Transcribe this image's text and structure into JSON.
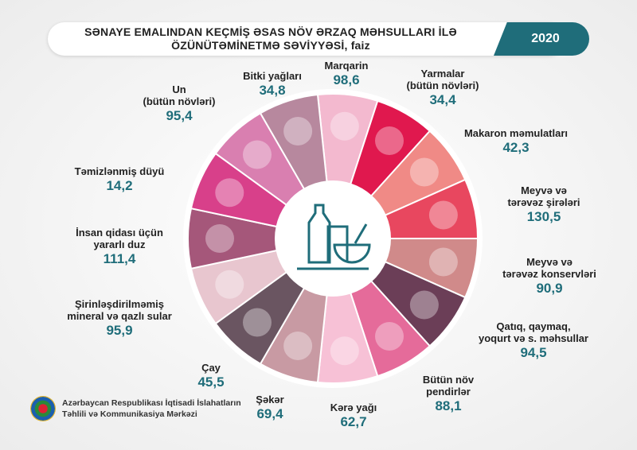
{
  "header": {
    "title_line1": "SƏNAYE EMALINDAN KEÇMİŞ ƏSAS NÖV ƏRZAQ MƏHSULLARI İLƏ",
    "title_line2": "ÖZÜNÜTƏMİNETMƏ SƏVİYYƏSİ, faiz",
    "year": "2020"
  },
  "items": [
    {
      "label": "Marqarin",
      "value": "98,6",
      "color": "#f3b9cf"
    },
    {
      "label": "Yarmalar\n(bütün növləri)",
      "value": "34,4",
      "color": "#e0184e"
    },
    {
      "label": "Makaron məmulatları",
      "value": "42,3",
      "color": "#f08a86"
    },
    {
      "label": "Meyvə və\ntərəvəz şirələri",
      "value": "130,5",
      "color": "#e8475f"
    },
    {
      "label": "Meyvə və\ntərəvəz konservləri",
      "value": "90,9",
      "color": "#d08a8a"
    },
    {
      "label": "Qatıq, qaymaq,\nyoqurt və s. məhsullar",
      "value": "94,5",
      "color": "#6b3e57"
    },
    {
      "label": "Bütün növ\npendirlər",
      "value": "88,1",
      "color": "#e56b9a"
    },
    {
      "label": "Kərə yağı",
      "value": "62,7",
      "color": "#f7c1d6"
    },
    {
      "label": "Şəkər",
      "value": "69,4",
      "color": "#c89aa3"
    },
    {
      "label": "Çay",
      "value": "45,5",
      "color": "#6a5561"
    },
    {
      "label": "Şirinləşdirilməmiş\nmineral və qazlı sular",
      "value": "95,9",
      "color": "#e8c6cf"
    },
    {
      "label": "İnsan qidası üçün\nyararlı duz",
      "value": "111,4",
      "color": "#a5577a"
    },
    {
      "label": "Təmizlənmiş düyü",
      "value": "14,2",
      "color": "#d8408a"
    },
    {
      "label": "Un\n(bütün növləri)",
      "value": "95,4",
      "color": "#d97fb0"
    },
    {
      "label": "Bitki yağları",
      "value": "34,8",
      "color": "#b7889e"
    }
  ],
  "accent": "#1f6d7a",
  "org": {
    "line1": "Azərbaycan Respublikası İqtisadi İslahatların",
    "line2": "Təhlili və Kommunikasiya Mərkəzi"
  }
}
